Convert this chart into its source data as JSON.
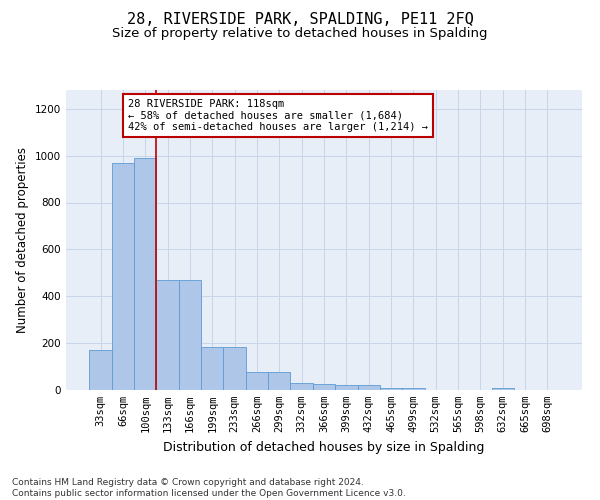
{
  "title": "28, RIVERSIDE PARK, SPALDING, PE11 2FQ",
  "subtitle": "Size of property relative to detached houses in Spalding",
  "xlabel": "Distribution of detached houses by size in Spalding",
  "ylabel": "Number of detached properties",
  "footer_line1": "Contains HM Land Registry data © Crown copyright and database right 2024.",
  "footer_line2": "Contains public sector information licensed under the Open Government Licence v3.0.",
  "categories": [
    "33sqm",
    "66sqm",
    "100sqm",
    "133sqm",
    "166sqm",
    "199sqm",
    "233sqm",
    "266sqm",
    "299sqm",
    "332sqm",
    "366sqm",
    "399sqm",
    "432sqm",
    "465sqm",
    "499sqm",
    "532sqm",
    "565sqm",
    "598sqm",
    "632sqm",
    "665sqm",
    "698sqm"
  ],
  "values": [
    170,
    970,
    990,
    470,
    470,
    185,
    185,
    75,
    75,
    30,
    25,
    20,
    20,
    10,
    10,
    0,
    0,
    0,
    10,
    0,
    0
  ],
  "bar_color": "#aec6e8",
  "bar_edge_color": "#5b9bd5",
  "grid_color": "#c8d4e8",
  "background_color": "#e8eef8",
  "annotation_box_text": "28 RIVERSIDE PARK: 118sqm\n← 58% of detached houses are smaller (1,684)\n42% of semi-detached houses are larger (1,214) →",
  "annotation_box_color": "#bb0000",
  "property_line_x": 2.5,
  "ylim": [
    0,
    1280
  ],
  "yticks": [
    0,
    200,
    400,
    600,
    800,
    1000,
    1200
  ],
  "title_fontsize": 11,
  "subtitle_fontsize": 9.5,
  "xlabel_fontsize": 9,
  "ylabel_fontsize": 8.5,
  "tick_fontsize": 7.5,
  "annotation_fontsize": 7.5,
  "footer_fontsize": 6.5
}
